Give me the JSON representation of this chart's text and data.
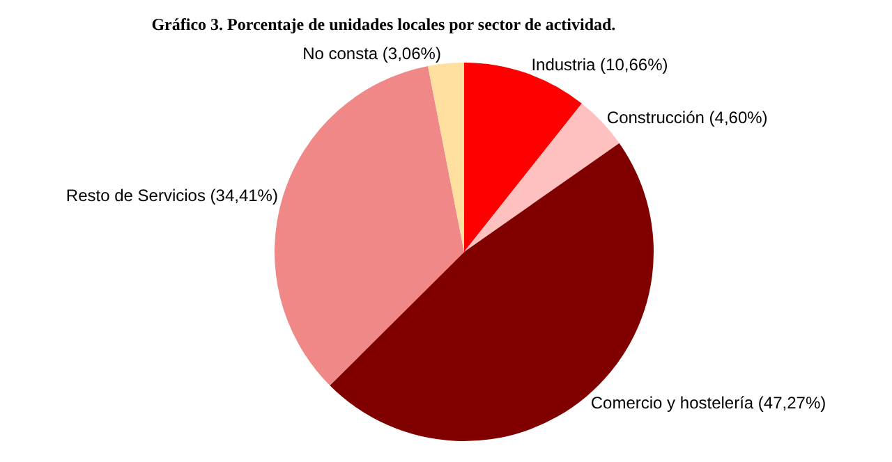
{
  "chart_data": {
    "type": "pie",
    "title": "Gráfico 3. Porcentaje de unidades locales por sector de actividad.",
    "categories": [
      "Industria (10,66%)",
      "Construcción (4,60%)",
      "Comercio y hostelería (47,27%)",
      "Resto de Servicios (34,41%)",
      "No consta (3,06%)"
    ],
    "values": [
      10.66,
      4.6,
      47.27,
      34.41,
      3.06
    ],
    "colors": [
      "#ff0000",
      "#ffc0c0",
      "#800000",
      "#f08888",
      "#ffe0a0"
    ],
    "legend": false
  }
}
